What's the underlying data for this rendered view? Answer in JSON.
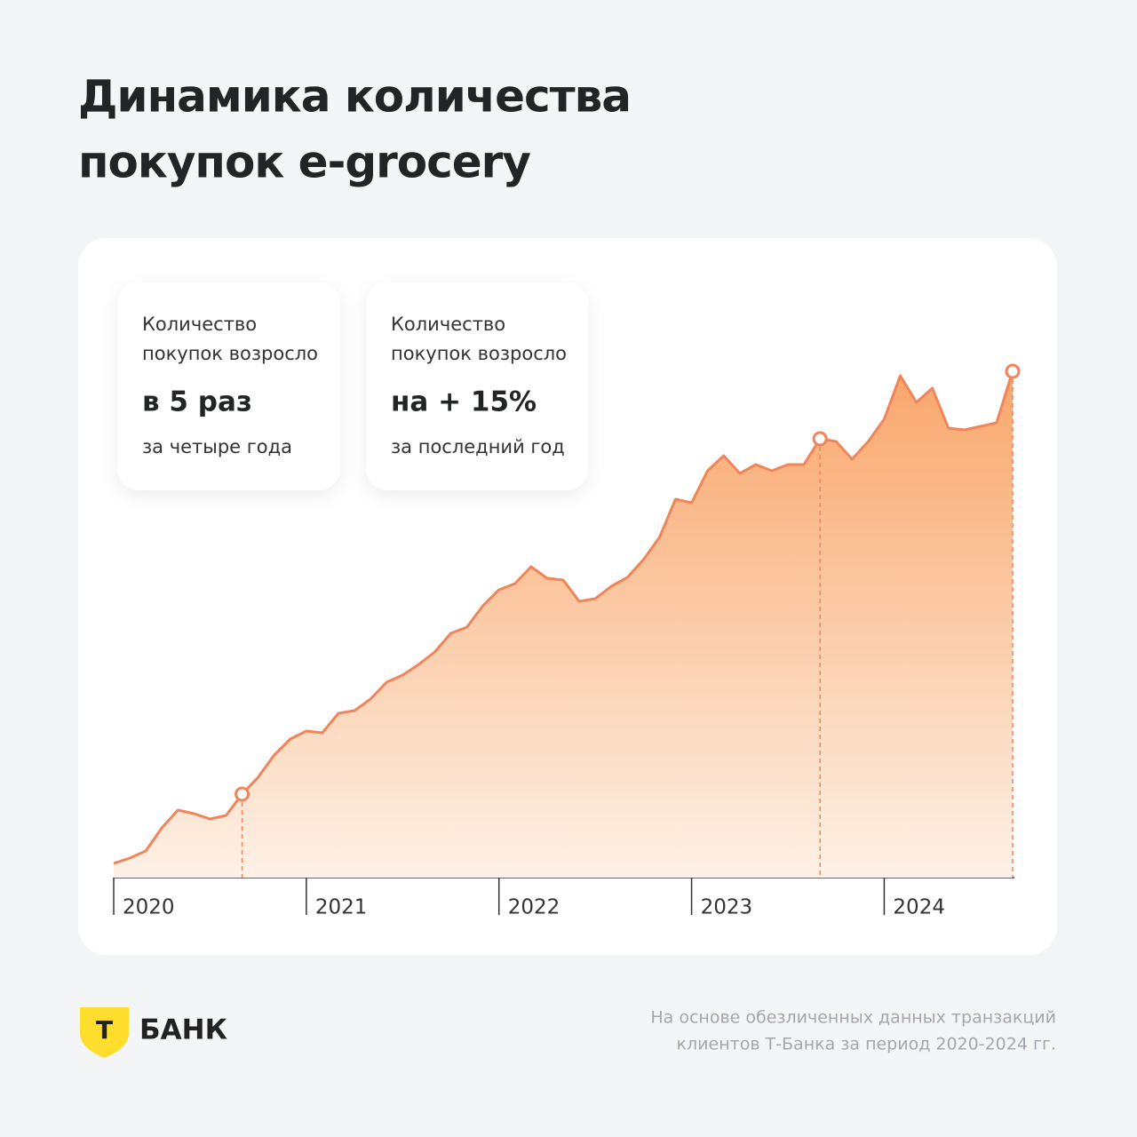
{
  "title": [
    "Динамика количества",
    "покупок e-grocery"
  ],
  "cards": [
    {
      "lines": [
        "Количество",
        "покупок возросло"
      ],
      "highlight": "в 5 раз",
      "footnote": "за четыре года"
    },
    {
      "lines": [
        "Количество",
        "покупок возросло"
      ],
      "highlight": "на + 15%",
      "footnote": "за последний год"
    }
  ],
  "chart_data": {
    "type": "line",
    "categories": [
      "2020",
      null,
      null,
      null,
      null,
      null,
      null,
      null,
      null,
      null,
      null,
      null,
      "2021",
      null,
      null,
      null,
      null,
      null,
      null,
      null,
      null,
      null,
      null,
      null,
      "2022",
      null,
      null,
      null,
      null,
      null,
      null,
      null,
      null,
      null,
      null,
      null,
      "2023",
      null,
      null,
      null,
      null,
      null,
      null,
      null,
      null,
      null,
      null,
      null,
      "2024",
      null,
      null,
      null,
      null,
      null,
      null,
      null,
      null
    ],
    "values": [
      1.6,
      2.2,
      3.0,
      5.6,
      7.6,
      7.2,
      6.6,
      7.0,
      9.4,
      11.3,
      13.8,
      15.6,
      16.5,
      16.3,
      18.5,
      18.8,
      20.1,
      22.0,
      22.8,
      24.0,
      25.4,
      27.5,
      28.2,
      30.6,
      32.4,
      33.1,
      35.0,
      33.7,
      33.5,
      31.1,
      31.4,
      32.8,
      33.8,
      35.8,
      38.3,
      42.6,
      42.2,
      45.8,
      47.5,
      45.5,
      46.5,
      45.8,
      46.5,
      46.5,
      49.4,
      49.1,
      47.1,
      49.1,
      51.6,
      56.5,
      53.5,
      55.1,
      50.6,
      50.4,
      50.8,
      51.2,
      57.0
    ],
    "ylim": [
      0,
      60
    ],
    "color": "#f0855a",
    "highlighted_points": [
      8,
      44,
      56
    ]
  },
  "footer": {
    "logo_letter": "Т",
    "brand": "БАНК",
    "note": [
      "На основе обезличенных данных транзакций",
      "клиентов Т-Банка за период 2020-2024 гг."
    ]
  }
}
